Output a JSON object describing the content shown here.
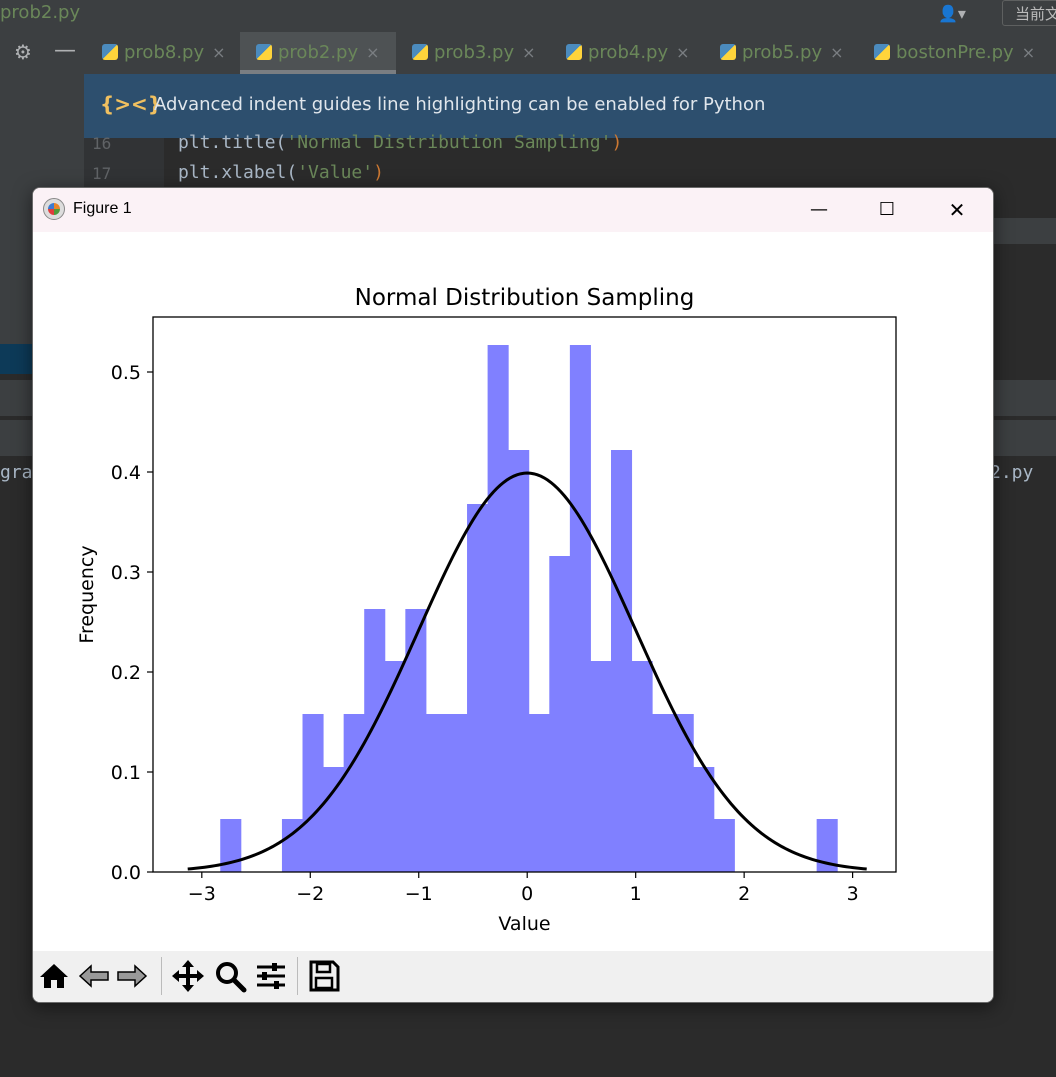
{
  "ide": {
    "file_title": "prob2.py",
    "top_button": "当前文",
    "tabs": [
      {
        "label": "prob8.py",
        "active": false
      },
      {
        "label": "prob2.py",
        "active": true
      },
      {
        "label": "prob3.py",
        "active": false
      },
      {
        "label": "prob4.py",
        "active": false
      },
      {
        "label": "prob5.py",
        "active": false
      },
      {
        "label": "bostonPre.py",
        "active": false
      }
    ],
    "tab_close": "×",
    "notice_text": "Advanced indent guides line highlighting can be enabled for Python",
    "code_lines": [
      {
        "num": "16",
        "pre": "plt.title(",
        "str": "'Normal Distribution Sampling'",
        "post": ")"
      },
      {
        "num": "17",
        "pre": "plt.xlabel(",
        "str": "'Value'",
        "post": ")"
      }
    ],
    "partial_left": "gra",
    "partial_right": "2.py"
  },
  "window": {
    "title": "Figure 1",
    "minimize": "—",
    "maximize": "☐",
    "close": "✕"
  },
  "toolbar_icons": [
    "home-icon",
    "back-icon",
    "forward-icon",
    "pan-icon",
    "zoom-icon",
    "configure-subplots-icon",
    "save-icon"
  ],
  "colors": {
    "hist_fill": "#8080ff",
    "curve": "#000000",
    "ide_bg": "#2b2b2b",
    "notice_bg": "#2d4f6e",
    "tab_text": "#6a8759"
  },
  "chart_data": {
    "type": "bar",
    "title": "Normal Distribution Sampling",
    "xlabel": "Value",
    "ylabel": "Frequency",
    "xlim": [
      -3.45,
      3.4
    ],
    "ylim": [
      0,
      0.555
    ],
    "xticks": [
      -3,
      -2,
      -1,
      0,
      1,
      2,
      3
    ],
    "xtick_labels": [
      "−3",
      "−2",
      "−1",
      "0",
      "1",
      "2",
      "3"
    ],
    "yticks": [
      0.0,
      0.1,
      0.2,
      0.3,
      0.4,
      0.5
    ],
    "ytick_labels": [
      "0.0",
      "0.1",
      "0.2",
      "0.3",
      "0.4",
      "0.5"
    ],
    "bin_start": -2.83,
    "bin_width": 0.1896,
    "values": [
      0.053,
      0,
      0,
      0.053,
      0.158,
      0.105,
      0.158,
      0.263,
      0.211,
      0.263,
      0.158,
      0.158,
      0.368,
      0.527,
      0.422,
      0.158,
      0.316,
      0.527,
      0.211,
      0.422,
      0.211,
      0.158,
      0.158,
      0.105,
      0.053,
      0,
      0,
      0,
      0,
      0.053
    ],
    "series": [
      {
        "kind": "histogram"
      },
      {
        "kind": "pdf-curve",
        "mean": 0,
        "std": 1,
        "x_range": [
          -3.13,
          3.13
        ]
      }
    ],
    "grid": false
  }
}
